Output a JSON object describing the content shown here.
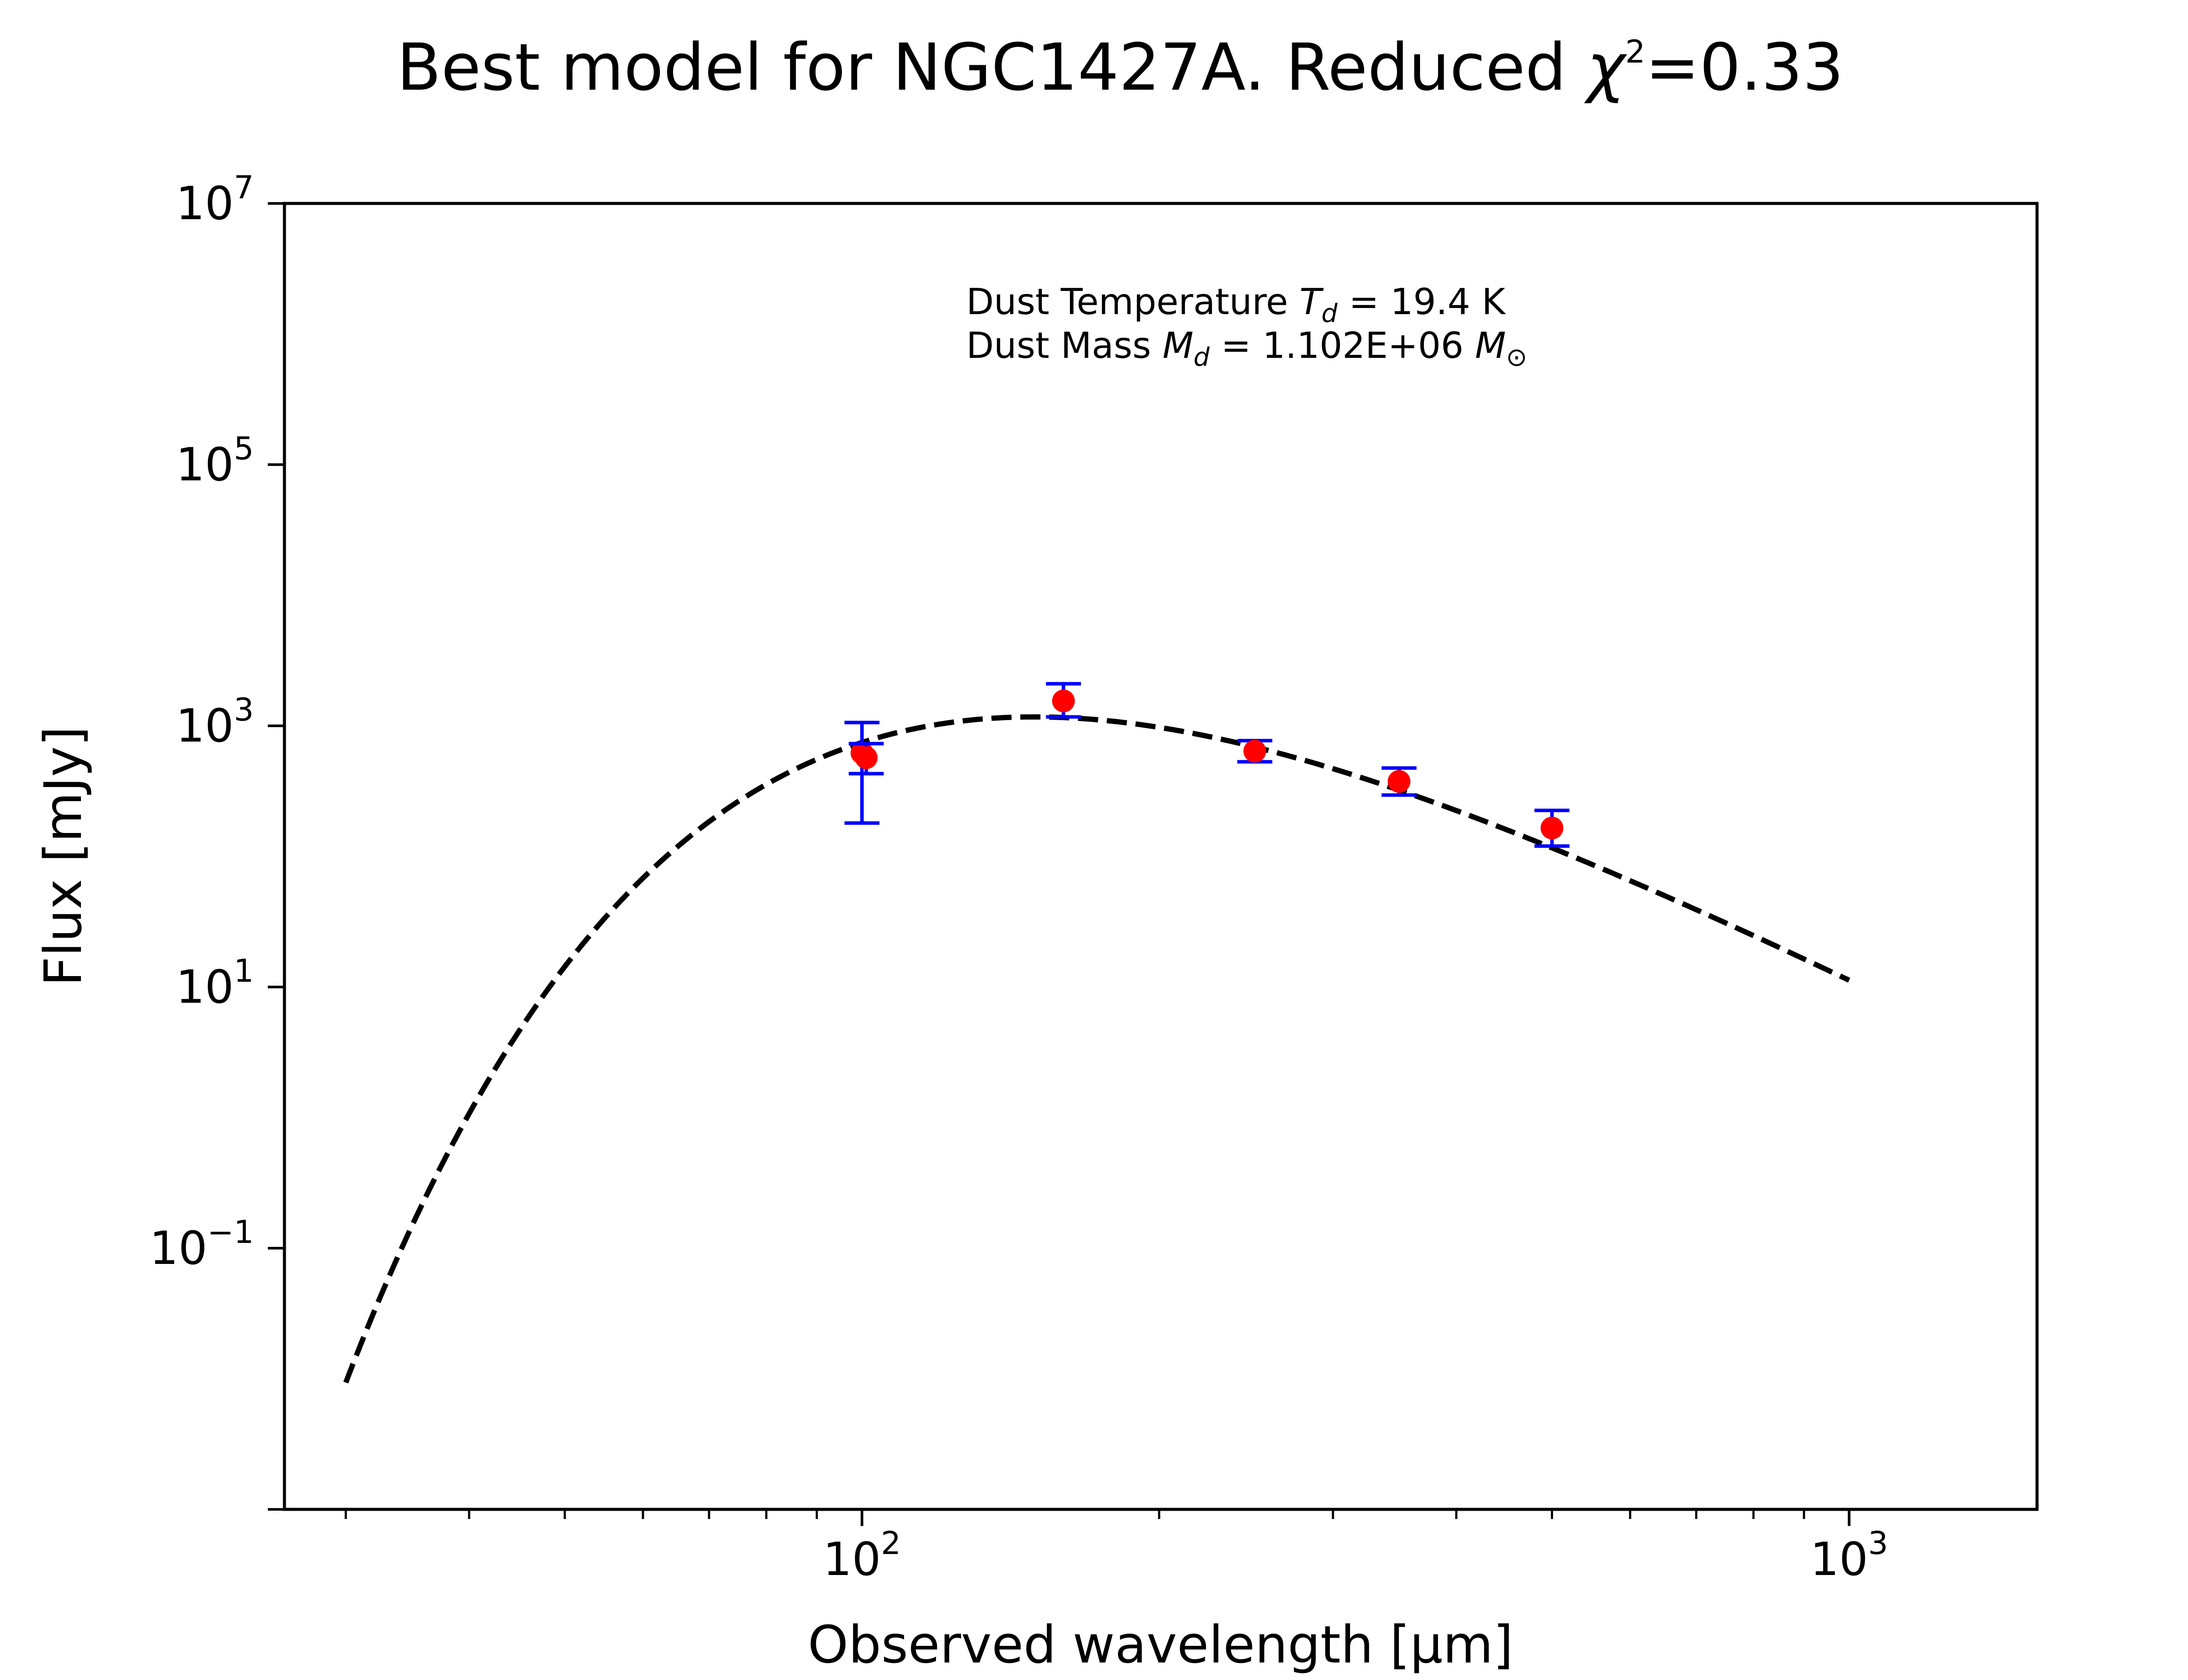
{
  "chart_data": {
    "type": "scatter",
    "title": "Best model for NGC1427A. Reduced χ²=0.33",
    "title_parts": {
      "prefix": "Best model for NGC1427A. Reduced ",
      "chi": "χ",
      "exp": "2",
      "suffix": "=0.33"
    },
    "xlabel": "Observed wavelength [μm]",
    "ylabel": "Flux [mJy]",
    "xscale": "log",
    "yscale": "log",
    "xlim": [
      26,
      1550
    ],
    "ylim": [
      0.001,
      10000000
    ],
    "grid": false,
    "xticks": [
      {
        "value": 100,
        "base": "10",
        "exp": "2"
      },
      {
        "value": 1000,
        "base": "10",
        "exp": "3"
      }
    ],
    "yticks": [
      {
        "value": 10000000,
        "base": "10",
        "exp": "7"
      },
      {
        "value": 100000,
        "base": "10",
        "exp": "5"
      },
      {
        "value": 1000,
        "base": "10",
        "exp": "3"
      },
      {
        "value": 10,
        "base": "10",
        "exp": "1"
      },
      {
        "value": 0.1,
        "base": "10",
        "exp": "−1"
      }
    ],
    "annotation": [
      {
        "text": "Dust Temperature ",
        "var": "T",
        "sub": "d",
        "rest": " = 19.4 K"
      },
      {
        "text": "Dust Mass ",
        "var": "M",
        "sub": "d",
        "rest": " = 1.102E+06 ",
        "var2": "M",
        "sub2": "⊙"
      }
    ],
    "model": {
      "style": "dashed",
      "color": "#000000",
      "temperature_K": 19.4,
      "beta": 2.0,
      "x_range": [
        30,
        1000
      ],
      "peak_flux": 1170
    },
    "observations": {
      "marker_color": "#ff0000",
      "errorbar_color": "#0000ff",
      "points": [
        {
          "x": 100,
          "y": 620,
          "yerr_low": 440,
          "yerr_high": 440
        },
        {
          "x": 101,
          "y": 570,
          "yerr_low": 140,
          "yerr_high": 160
        },
        {
          "x": 160,
          "y": 1550,
          "yerr_low": 380,
          "yerr_high": 550
        },
        {
          "x": 250,
          "y": 640,
          "yerr_low": 110,
          "yerr_high": 130
        },
        {
          "x": 350,
          "y": 375,
          "yerr_low": 80,
          "yerr_high": 100
        },
        {
          "x": 500,
          "y": 165,
          "yerr_low": 45,
          "yerr_high": 60
        }
      ]
    }
  }
}
